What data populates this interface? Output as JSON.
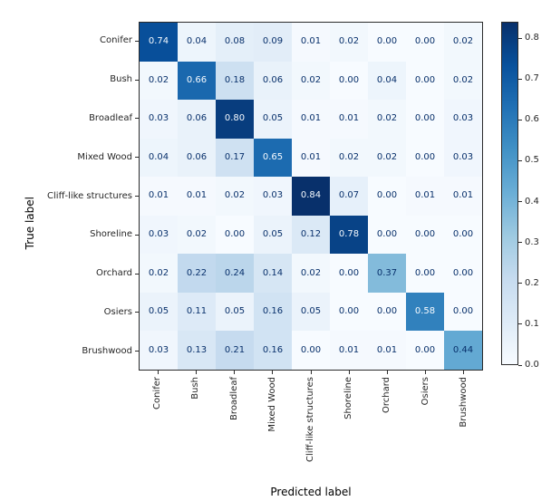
{
  "figure": {
    "xlabel": "Predicted label",
    "ylabel": "True label"
  },
  "chart_data": {
    "type": "heatmap",
    "subtype": "confusion-matrix",
    "title": "",
    "xlabel": "Predicted label",
    "ylabel": "True label",
    "categories": [
      "Conifer",
      "Bush",
      "Broadleaf",
      "Mixed Wood",
      "Cliff-like structures",
      "Shoreline",
      "Orchard",
      "Osiers",
      "Brushwood"
    ],
    "rows": [
      [
        0.74,
        0.04,
        0.08,
        0.09,
        0.01,
        0.02,
        0.0,
        0.0,
        0.02
      ],
      [
        0.02,
        0.66,
        0.18,
        0.06,
        0.02,
        0.0,
        0.04,
        0.0,
        0.02
      ],
      [
        0.03,
        0.06,
        0.8,
        0.05,
        0.01,
        0.01,
        0.02,
        0.0,
        0.03
      ],
      [
        0.04,
        0.06,
        0.17,
        0.65,
        0.01,
        0.02,
        0.02,
        0.0,
        0.03
      ],
      [
        0.01,
        0.01,
        0.02,
        0.03,
        0.84,
        0.07,
        0.0,
        0.01,
        0.01
      ],
      [
        0.03,
        0.02,
        0.0,
        0.05,
        0.12,
        0.78,
        0.0,
        0.0,
        0.0
      ],
      [
        0.02,
        0.22,
        0.24,
        0.14,
        0.02,
        0.0,
        0.37,
        0.0,
        0.0
      ],
      [
        0.05,
        0.11,
        0.05,
        0.16,
        0.05,
        0.0,
        0.0,
        0.58,
        0.0
      ],
      [
        0.03,
        0.13,
        0.21,
        0.16,
        0.0,
        0.01,
        0.01,
        0.0,
        0.44
      ]
    ],
    "value_decimals": 2,
    "vmin": 0.0,
    "vmax": 0.84,
    "colormap": "Blues",
    "grid": false,
    "colorbar": {
      "position": "right",
      "tick_values": [
        0.0,
        0.1,
        0.2,
        0.3,
        0.4,
        0.5,
        0.6,
        0.7,
        0.8
      ],
      "tick_labels": [
        "0.0",
        "0.1",
        "0.2",
        "0.3",
        "0.4",
        "0.5",
        "0.6",
        "0.7",
        "0.8"
      ]
    }
  },
  "colors": {
    "blues_stops": [
      [
        247,
        251,
        255
      ],
      [
        222,
        235,
        247
      ],
      [
        198,
        219,
        239
      ],
      [
        158,
        202,
        225
      ],
      [
        107,
        174,
        214
      ],
      [
        66,
        146,
        198
      ],
      [
        33,
        113,
        181
      ],
      [
        8,
        81,
        156
      ],
      [
        8,
        48,
        107
      ]
    ],
    "cell_text_dark": "#08306b",
    "cell_text_light": "#f7fbff",
    "white_text_threshold": 0.5,
    "axis_color": "#2b2b2b"
  }
}
